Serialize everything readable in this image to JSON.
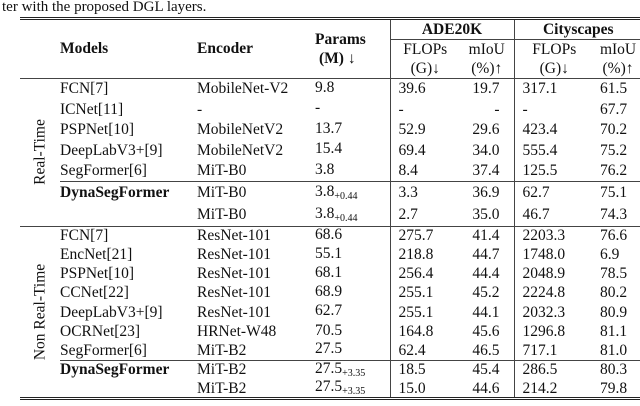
{
  "caption": "ter with the proposed DGL layers.",
  "header": {
    "models": "Models",
    "encoder": "Encoder",
    "params_line1": "Params",
    "params_line2": "(M) ↓",
    "ade": "ADE20K",
    "city": "Cityscapes",
    "flops": "FLOPs",
    "flops_unit": "(G)↓",
    "miou": "mIoU",
    "miou_unit": "(%)↑"
  },
  "groups": [
    {
      "label": "Real-Time",
      "rows": [
        {
          "model": "FCN[7]",
          "bold": false,
          "encoder": "MobileNet-V2",
          "params": "9.8",
          "params_sub": "",
          "ade_flops": "39.6",
          "ade_miou": "19.7",
          "city_flops": "317.1",
          "city_miou": "61.5"
        },
        {
          "model": "ICNet[11]",
          "bold": false,
          "encoder": "-",
          "params": "-",
          "params_sub": "",
          "ade_flops": "-",
          "ade_miou": "-",
          "city_flops": "-",
          "city_miou": "67.7"
        },
        {
          "model": "PSPNet[10]",
          "bold": false,
          "encoder": "MobileNetV2",
          "params": "13.7",
          "params_sub": "",
          "ade_flops": "52.9",
          "ade_miou": "29.6",
          "city_flops": "423.4",
          "city_miou": "70.2"
        },
        {
          "model": "DeepLabV3+[9]",
          "bold": false,
          "encoder": "MobileNetV2",
          "params": "15.4",
          "params_sub": "",
          "ade_flops": "69.4",
          "ade_miou": "34.0",
          "city_flops": "555.4",
          "city_miou": "75.2"
        },
        {
          "model": "SegFormer[6]",
          "bold": false,
          "encoder": "MiT-B0",
          "params": "3.8",
          "params_sub": "",
          "ade_flops": "8.4",
          "ade_miou": "37.4",
          "city_flops": "125.5",
          "city_miou": "76.2"
        },
        {
          "model": "DynaSegFormer",
          "bold": true,
          "encoder": "MiT-B0",
          "params": "3.8",
          "params_sub": "+0.44",
          "ade_flops": "3.3",
          "ade_miou": "36.9",
          "city_flops": "62.7",
          "city_miou": "75.1"
        },
        {
          "model": "",
          "bold": true,
          "encoder": "MiT-B0",
          "params": "3.8",
          "params_sub": "+0.44",
          "ade_flops": "2.7",
          "ade_miou": "35.0",
          "city_flops": "46.7",
          "city_miou": "74.3"
        }
      ]
    },
    {
      "label": "Non Real-Time",
      "rows": [
        {
          "model": "FCN[7]",
          "bold": false,
          "encoder": "ResNet-101",
          "params": "68.6",
          "params_sub": "",
          "ade_flops": "275.7",
          "ade_miou": "41.4",
          "city_flops": "2203.3",
          "city_miou": "76.6"
        },
        {
          "model": "EncNet[21]",
          "bold": false,
          "encoder": "ResNet-101",
          "params": "55.1",
          "params_sub": "",
          "ade_flops": "218.8",
          "ade_miou": "44.7",
          "city_flops": "1748.0",
          "city_miou": "6.9"
        },
        {
          "model": "PSPNet[10]",
          "bold": false,
          "encoder": "ResNet-101",
          "params": "68.1",
          "params_sub": "",
          "ade_flops": "256.4",
          "ade_miou": "44.4",
          "city_flops": "2048.9",
          "city_miou": "78.5"
        },
        {
          "model": "CCNet[22]",
          "bold": false,
          "encoder": "ResNet-101",
          "params": "68.9",
          "params_sub": "",
          "ade_flops": "255.1",
          "ade_miou": "45.2",
          "city_flops": "2224.8",
          "city_miou": "80.2"
        },
        {
          "model": "DeepLabV3+[9]",
          "bold": false,
          "encoder": "ResNet-101",
          "params": "62.7",
          "params_sub": "",
          "ade_flops": "255.1",
          "ade_miou": "44.1",
          "city_flops": "2032.3",
          "city_miou": "80.9"
        },
        {
          "model": "OCRNet[23]",
          "bold": false,
          "encoder": "HRNet-W48",
          "params": "70.5",
          "params_sub": "",
          "ade_flops": "164.8",
          "ade_miou": "45.6",
          "city_flops": "1296.8",
          "city_miou": "81.1"
        },
        {
          "model": "SegFormer[6]",
          "bold": false,
          "encoder": "MiT-B2",
          "params": "27.5",
          "params_sub": "",
          "ade_flops": "62.4",
          "ade_miou": "46.5",
          "city_flops": "717.1",
          "city_miou": "81.0"
        },
        {
          "model": "DynaSegFormer",
          "bold": true,
          "encoder": "MiT-B2",
          "params": "27.5",
          "params_sub": "+3.35",
          "ade_flops": "18.5",
          "ade_miou": "45.4",
          "city_flops": "286.5",
          "city_miou": "80.3"
        },
        {
          "model": "",
          "bold": true,
          "encoder": "MiT-B2",
          "params": "27.5",
          "params_sub": "+3.35",
          "ade_flops": "15.0",
          "ade_miou": "44.6",
          "city_flops": "214.2",
          "city_miou": "79.8"
        }
      ]
    }
  ]
}
